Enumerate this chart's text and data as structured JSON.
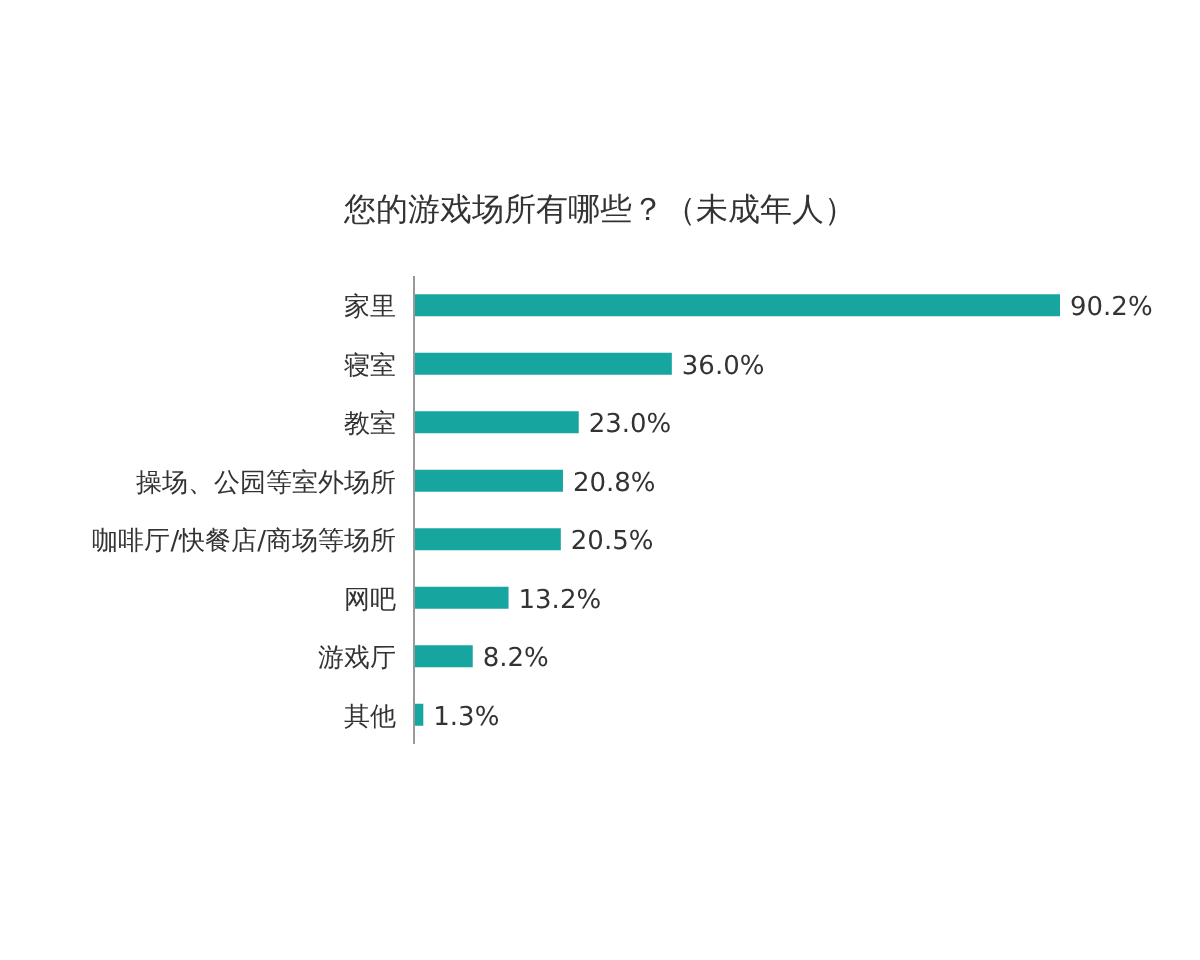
{
  "chart_data": {
    "type": "bar",
    "orientation": "horizontal",
    "title": "您的游戏场所有哪些？（未成年人）",
    "color": "#17a5a0",
    "categories": [
      "家里",
      "寝室",
      "教室",
      "操场、公园等室外场所",
      "咖啡厅/快餐店/商场等场所",
      "网吧",
      "游戏厅",
      "其他"
    ],
    "values": [
      90.2,
      36.0,
      23.0,
      20.8,
      20.5,
      13.2,
      8.2,
      1.3
    ],
    "value_labels": [
      "90.2%",
      "36.0%",
      "23.0%",
      "20.8%",
      "20.5%",
      "13.2%",
      "8.2%",
      "1.3%"
    ]
  }
}
